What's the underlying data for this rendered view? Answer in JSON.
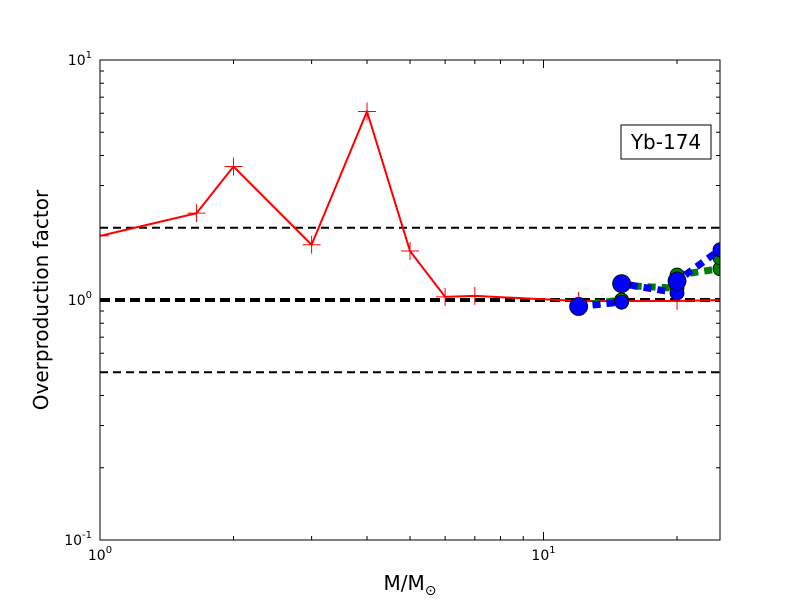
{
  "chart_data": {
    "type": "line",
    "title": "",
    "xlabel": "M/M",
    "xlabel_sub": "⊙",
    "ylabel": "Overproduction factor",
    "xscale": "log",
    "yscale": "log",
    "xlim": [
      1,
      25
    ],
    "ylim": [
      0.1,
      10
    ],
    "x_major_ticks": [
      {
        "value": 1,
        "base": "10",
        "exp": "0"
      },
      {
        "value": 10,
        "base": "10",
        "exp": "1"
      }
    ],
    "y_major_ticks": [
      {
        "value": 0.1,
        "base": "10",
        "exp": "-1"
      },
      {
        "value": 1,
        "base": "10",
        "exp": "0"
      },
      {
        "value": 10,
        "base": "10",
        "exp": "1"
      }
    ],
    "grid": false,
    "annotation": "Yb-174",
    "reference_lines": [
      {
        "y": 2.0,
        "style": "dashed",
        "width": 2,
        "color": "#000000"
      },
      {
        "y": 1.0,
        "style": "dashed",
        "width": 4,
        "color": "#000000"
      },
      {
        "y": 0.5,
        "style": "dashed",
        "width": 2,
        "color": "#000000"
      }
    ],
    "series": [
      {
        "color": "#ff0000",
        "style": "solid",
        "marker": "plus",
        "x": [
          1.0,
          1.65,
          2.0,
          3.0,
          4.0,
          5.0,
          6.0,
          7.0,
          12.0,
          15.0,
          20.0,
          25.0
        ],
        "y": [
          1.85,
          2.3,
          3.6,
          1.7,
          6.1,
          1.6,
          1.03,
          1.04,
          0.99,
          0.99,
          0.99,
          1.0
        ]
      },
      {
        "color": "#008000",
        "style": "dotted",
        "marker": "circle",
        "x": [
          12.0,
          15.0,
          15.0,
          20.0,
          20.0,
          25.0,
          25.0
        ],
        "y": [
          0.95,
          1.0,
          1.15,
          1.12,
          1.27,
          1.35,
          1.5
        ]
      },
      {
        "color": "#0000ff",
        "style": "dotted",
        "marker": "circle",
        "x": [
          12.0,
          15.0,
          15.0,
          20.0,
          20.0,
          25.0
        ],
        "y": [
          0.94,
          0.98,
          1.17,
          1.07,
          1.2,
          1.62
        ]
      }
    ]
  },
  "colors": {
    "frame": "#000000",
    "green_marker_fill": "#008000",
    "blue_marker_fill": "#0000ff"
  }
}
